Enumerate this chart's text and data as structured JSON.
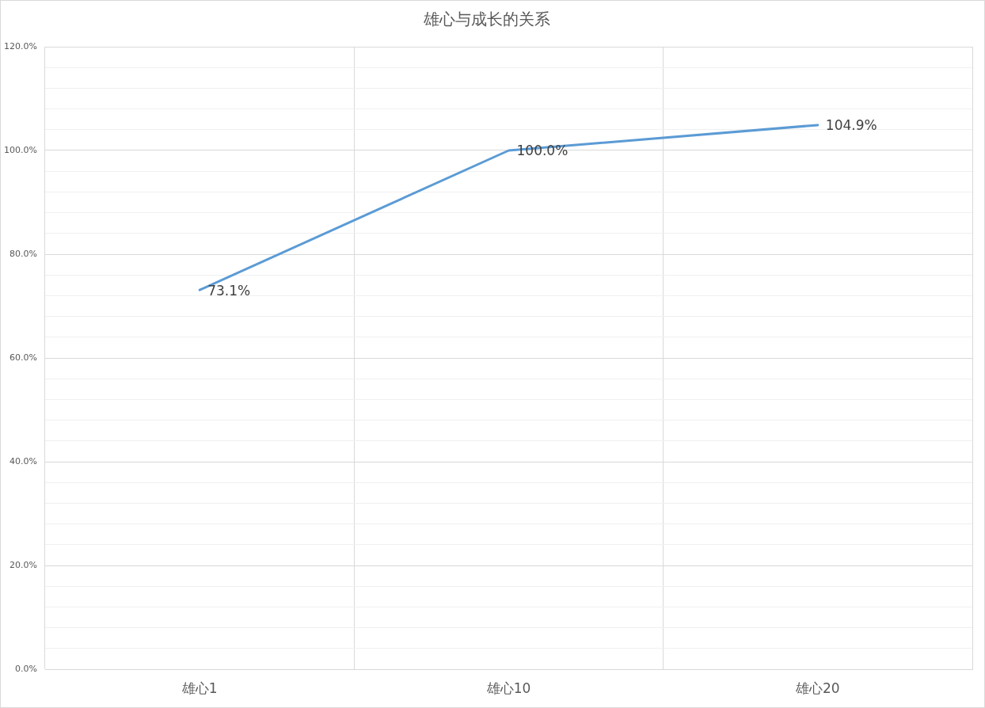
{
  "chart_data": {
    "type": "line",
    "title": "雄心与成长的关系",
    "categories": [
      "雄心1",
      "雄心10",
      "雄心20"
    ],
    "values": [
      73.1,
      100.0,
      104.9
    ],
    "color": "#5b9bd5",
    "value_labels": [
      "73.1%",
      "100.0%",
      "104.9%"
    ],
    "ylim": [
      0,
      120
    ],
    "yticks": [
      {
        "value": 0,
        "label": "0.0%"
      },
      {
        "value": 4,
        "label": null
      },
      {
        "value": 8,
        "label": null
      },
      {
        "value": 12,
        "label": null
      },
      {
        "value": 16,
        "label": null
      },
      {
        "value": 20,
        "label": "20.0%"
      },
      {
        "value": 24,
        "label": null
      },
      {
        "value": 28,
        "label": null
      },
      {
        "value": 32,
        "label": null
      },
      {
        "value": 36,
        "label": null
      },
      {
        "value": 40,
        "label": "40.0%"
      },
      {
        "value": 44,
        "label": null
      },
      {
        "value": 48,
        "label": null
      },
      {
        "value": 52,
        "label": null
      },
      {
        "value": 56,
        "label": null
      },
      {
        "value": 60,
        "label": "60.0%"
      },
      {
        "value": 64,
        "label": null
      },
      {
        "value": 68,
        "label": null
      },
      {
        "value": 72,
        "label": null
      },
      {
        "value": 76,
        "label": null
      },
      {
        "value": 80,
        "label": "80.0%"
      },
      {
        "value": 84,
        "label": null
      },
      {
        "value": 88,
        "label": null
      },
      {
        "value": 92,
        "label": null
      },
      {
        "value": 96,
        "label": null
      },
      {
        "value": 100,
        "label": "100.0%"
      },
      {
        "value": 104,
        "label": null
      },
      {
        "value": 108,
        "label": null
      },
      {
        "value": 112,
        "label": null
      },
      {
        "value": 116,
        "label": null
      },
      {
        "value": 120,
        "label": "120.0%"
      }
    ],
    "grid": true,
    "marker": "none",
    "line_style": "solid"
  }
}
